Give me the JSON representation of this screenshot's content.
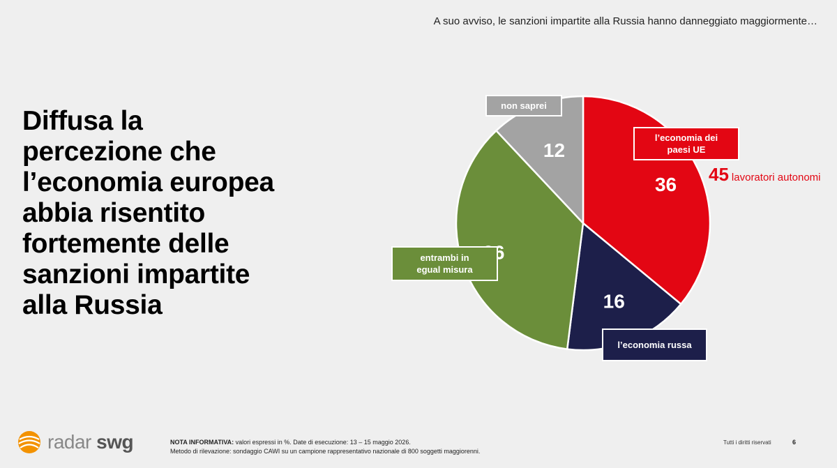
{
  "question": "A suo avviso, le sanzioni impartite alla Russia hanno danneggiato maggiormente…",
  "headline": "Diffusa la percezione che l’economia europea abbia risentito fortemente delle sanzioni impartite alla Russia",
  "chart_data": {
    "type": "pie",
    "slices": [
      {
        "label": "l’economia dei\npaesi UE",
        "value": 36,
        "color": "#e30613"
      },
      {
        "label": "l’economia russa",
        "value": 16,
        "color": "#1d1f4a"
      },
      {
        "label": "entrambi in\negual misura",
        "value": 36,
        "color": "#6b8e3a"
      },
      {
        "label": "non saprei",
        "value": 12,
        "color": "#a3a3a3"
      }
    ],
    "annotation": {
      "value": "45",
      "text": "lavoratori autonomi",
      "color": "#e30613"
    }
  },
  "footer": {
    "logo_part1": "radar",
    "logo_part2": "swg",
    "note_bold": "NOTA INFORMATIVA:",
    "note_line1": "valori espressi in %. Date di esecuzione: 13 – 15 maggio 2026.",
    "note_line2": "Metodo di rilevazione: sondaggio CAWI su un campione rappresentativo nazionale di 800 soggetti maggiorenni.",
    "rights": "Tutti i diritti riservati",
    "page": "6"
  }
}
